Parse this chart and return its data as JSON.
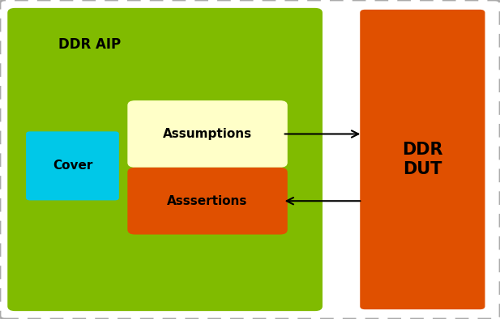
{
  "bg_color": "#ffffff",
  "ddr_aip_color": "#80bb00",
  "ddr_dut_color": "#e05000",
  "cover_color": "#00c8e8",
  "assumptions_color": "#ffffc8",
  "assertions_color": "#e05000",
  "ddr_aip_label": "DDR AIP",
  "ddr_dut_label": "DDR\nDUT",
  "cover_label": "Cover",
  "assumptions_label": "Assumptions",
  "assertions_label": "Asssertions",
  "label_fontsize": 11,
  "title_fontsize": 12,
  "dut_fontsize": 15,
  "fig_width": 6.17,
  "fig_height": 3.94,
  "dpi": 100
}
